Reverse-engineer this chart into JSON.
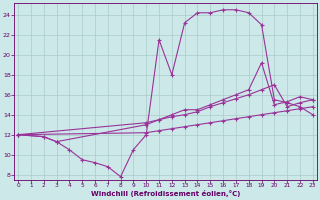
{
  "bg_color": "#cce8e8",
  "line_color": "#993399",
  "grid_color": "#aacccc",
  "xlabel": "Windchill (Refroidissement éolien,°C)",
  "xlabel_color": "#660066",
  "tick_color": "#660066",
  "xlim_min": -0.3,
  "xlim_max": 23.3,
  "ylim_min": 7.5,
  "ylim_max": 25.2,
  "yticks": [
    8,
    10,
    12,
    14,
    16,
    18,
    20,
    22,
    24
  ],
  "xticks": [
    0,
    1,
    2,
    3,
    4,
    5,
    6,
    7,
    8,
    9,
    10,
    11,
    12,
    13,
    14,
    15,
    16,
    17,
    18,
    19,
    20,
    21,
    22,
    23
  ],
  "lines": [
    {
      "x": [
        0,
        2,
        3,
        4,
        5,
        6,
        7,
        8,
        9,
        10,
        11,
        12,
        13,
        14,
        15,
        16,
        17,
        18,
        19,
        20,
        21,
        22,
        23
      ],
      "y": [
        12,
        11.8,
        11.3,
        10.5,
        9.5,
        9.2,
        8.8,
        7.8,
        10.5,
        12.0,
        21.5,
        18.0,
        23.2,
        24.2,
        24.2,
        24.5,
        24.5,
        24.2,
        23.0,
        15.5,
        15.2,
        14.8,
        14.0
      ]
    },
    {
      "x": [
        0,
        2,
        3,
        10,
        11,
        12,
        13,
        14,
        15,
        16,
        17,
        18,
        19,
        20,
        21,
        22,
        23
      ],
      "y": [
        12,
        11.8,
        11.3,
        13.0,
        13.5,
        14.0,
        14.5,
        14.5,
        15.0,
        15.5,
        16.0,
        16.5,
        19.2,
        15.0,
        15.3,
        15.8,
        15.5
      ]
    },
    {
      "x": [
        0,
        10,
        11,
        12,
        13,
        14,
        15,
        16,
        17,
        18,
        19,
        20,
        21,
        22,
        23
      ],
      "y": [
        12,
        13.2,
        13.5,
        13.8,
        14.0,
        14.3,
        14.8,
        15.2,
        15.6,
        16.0,
        16.5,
        17.0,
        14.8,
        15.2,
        15.5
      ]
    },
    {
      "x": [
        0,
        10,
        11,
        12,
        13,
        14,
        15,
        16,
        17,
        18,
        19,
        20,
        21,
        22,
        23
      ],
      "y": [
        12,
        12.2,
        12.4,
        12.6,
        12.8,
        13.0,
        13.2,
        13.4,
        13.6,
        13.8,
        14.0,
        14.2,
        14.4,
        14.6,
        14.8
      ]
    }
  ]
}
